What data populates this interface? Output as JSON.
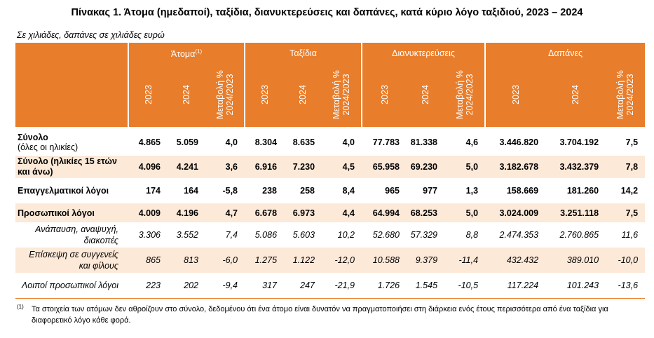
{
  "title": "Πίνακας 1. Άτομα (ημεδαποί), ταξίδια, διανυκτερεύσεις και δαπάνες, κατά κύριο λόγο ταξιδιού, 2023 – 2024",
  "subtitle": "Σε χιλιάδες, δαπάνες σε χιλιάδες ευρώ",
  "header": {
    "groups": [
      {
        "label": "Άτομα",
        "sup": "(1)"
      },
      {
        "label": "Ταξίδια",
        "sup": ""
      },
      {
        "label": "Διανυκτερεύσεις",
        "sup": ""
      },
      {
        "label": "Δαπάνες",
        "sup": ""
      }
    ],
    "col_2023": "2023",
    "col_2024": "2024",
    "col_change_1": "Μεταβολή %",
    "col_change_2": "2024/2023"
  },
  "rows": [
    {
      "label": "Σύνολο",
      "sublabel": "(όλες οι ηλικίες)",
      "values": [
        "4.865",
        "5.059",
        "4,0",
        "8.304",
        "8.635",
        "4,0",
        "77.783",
        "81.338",
        "4,6",
        "3.446.820",
        "3.704.192",
        "7,5"
      ]
    },
    {
      "label": "Σύνολο (ηλικίες 15 ετών και άνω)",
      "values": [
        "4.096",
        "4.241",
        "3,6",
        "6.916",
        "7.230",
        "4,5",
        "65.958",
        "69.230",
        "5,0",
        "3.182.678",
        "3.432.379",
        "7,8"
      ]
    },
    {
      "label": "Επαγγελματικοί λόγοι",
      "values": [
        "174",
        "164",
        "-5,8",
        "238",
        "258",
        "8,4",
        "965",
        "977",
        "1,3",
        "158.669",
        "181.260",
        "14,2"
      ]
    },
    {
      "label": "Προσωπικοί λόγοι",
      "values": [
        "4.009",
        "4.196",
        "4,7",
        "6.678",
        "6.973",
        "4,4",
        "64.994",
        "68.253",
        "5,0",
        "3.024.009",
        "3.251.118",
        "7,5"
      ]
    },
    {
      "label": "Ανάπαυση, αναψυχή, διακοπές",
      "values": [
        "3.306",
        "3.552",
        "7,4",
        "5.086",
        "5.603",
        "10,2",
        "52.680",
        "57.329",
        "8,8",
        "2.474.353",
        "2.760.865",
        "11,6"
      ]
    },
    {
      "label": "Επίσκεψη σε συγγενείς και φίλους",
      "values": [
        "865",
        "813",
        "-6,0",
        "1.275",
        "1.122",
        "-12,0",
        "10.588",
        "9.379",
        "-11,4",
        "432.432",
        "389.010",
        "-10,0"
      ]
    },
    {
      "label": "Λοιποί προσωπικοί λόγοι",
      "values": [
        "223",
        "202",
        "-9,4",
        "317",
        "247",
        "-21,9",
        "1.726",
        "1.545",
        "-10,5",
        "117.224",
        "101.243",
        "-13,6"
      ]
    }
  ],
  "footnote": {
    "mark": "(1)",
    "text": "Τα στοιχεία των ατόμων δεν αθροίζουν στο σύνολο, δεδομένου ότι ένα άτομο είναι δυνατόν να πραγματοποιήσει στη διάρκεια ενός έτους περισσότερα από ένα ταξίδια για διαφορετικό λόγο κάθε φορά."
  },
  "colors": {
    "accent": "#e87d2b",
    "shade": "#fde9d8"
  }
}
